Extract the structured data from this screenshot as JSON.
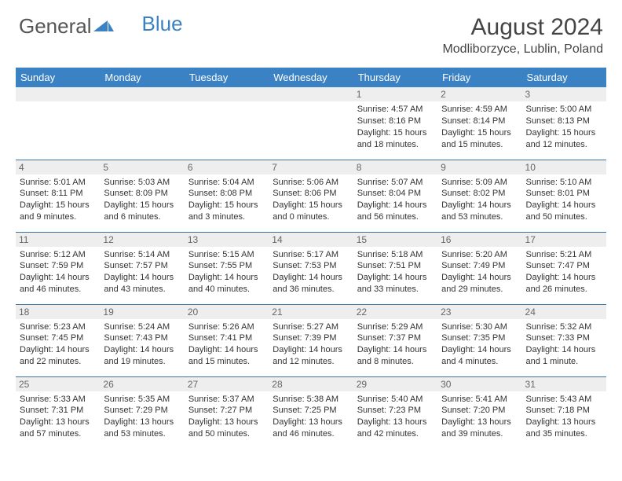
{
  "logo": {
    "part1": "General",
    "part2": "Blue"
  },
  "title": "August 2024",
  "location": "Modliborzyce, Lublin, Poland",
  "colors": {
    "header_bg": "#3b82c4",
    "header_text": "#ffffff",
    "daynum_bg": "#eeeeee",
    "border": "#3b72a8",
    "text": "#333333"
  },
  "weekdays": [
    "Sunday",
    "Monday",
    "Tuesday",
    "Wednesday",
    "Thursday",
    "Friday",
    "Saturday"
  ],
  "weeks": [
    [
      null,
      null,
      null,
      null,
      {
        "n": "1",
        "sr": "4:57 AM",
        "ss": "8:16 PM",
        "dl": "15 hours and 18 minutes."
      },
      {
        "n": "2",
        "sr": "4:59 AM",
        "ss": "8:14 PM",
        "dl": "15 hours and 15 minutes."
      },
      {
        "n": "3",
        "sr": "5:00 AM",
        "ss": "8:13 PM",
        "dl": "15 hours and 12 minutes."
      }
    ],
    [
      {
        "n": "4",
        "sr": "5:01 AM",
        "ss": "8:11 PM",
        "dl": "15 hours and 9 minutes."
      },
      {
        "n": "5",
        "sr": "5:03 AM",
        "ss": "8:09 PM",
        "dl": "15 hours and 6 minutes."
      },
      {
        "n": "6",
        "sr": "5:04 AM",
        "ss": "8:08 PM",
        "dl": "15 hours and 3 minutes."
      },
      {
        "n": "7",
        "sr": "5:06 AM",
        "ss": "8:06 PM",
        "dl": "15 hours and 0 minutes."
      },
      {
        "n": "8",
        "sr": "5:07 AM",
        "ss": "8:04 PM",
        "dl": "14 hours and 56 minutes."
      },
      {
        "n": "9",
        "sr": "5:09 AM",
        "ss": "8:02 PM",
        "dl": "14 hours and 53 minutes."
      },
      {
        "n": "10",
        "sr": "5:10 AM",
        "ss": "8:01 PM",
        "dl": "14 hours and 50 minutes."
      }
    ],
    [
      {
        "n": "11",
        "sr": "5:12 AM",
        "ss": "7:59 PM",
        "dl": "14 hours and 46 minutes."
      },
      {
        "n": "12",
        "sr": "5:14 AM",
        "ss": "7:57 PM",
        "dl": "14 hours and 43 minutes."
      },
      {
        "n": "13",
        "sr": "5:15 AM",
        "ss": "7:55 PM",
        "dl": "14 hours and 40 minutes."
      },
      {
        "n": "14",
        "sr": "5:17 AM",
        "ss": "7:53 PM",
        "dl": "14 hours and 36 minutes."
      },
      {
        "n": "15",
        "sr": "5:18 AM",
        "ss": "7:51 PM",
        "dl": "14 hours and 33 minutes."
      },
      {
        "n": "16",
        "sr": "5:20 AM",
        "ss": "7:49 PM",
        "dl": "14 hours and 29 minutes."
      },
      {
        "n": "17",
        "sr": "5:21 AM",
        "ss": "7:47 PM",
        "dl": "14 hours and 26 minutes."
      }
    ],
    [
      {
        "n": "18",
        "sr": "5:23 AM",
        "ss": "7:45 PM",
        "dl": "14 hours and 22 minutes."
      },
      {
        "n": "19",
        "sr": "5:24 AM",
        "ss": "7:43 PM",
        "dl": "14 hours and 19 minutes."
      },
      {
        "n": "20",
        "sr": "5:26 AM",
        "ss": "7:41 PM",
        "dl": "14 hours and 15 minutes."
      },
      {
        "n": "21",
        "sr": "5:27 AM",
        "ss": "7:39 PM",
        "dl": "14 hours and 12 minutes."
      },
      {
        "n": "22",
        "sr": "5:29 AM",
        "ss": "7:37 PM",
        "dl": "14 hours and 8 minutes."
      },
      {
        "n": "23",
        "sr": "5:30 AM",
        "ss": "7:35 PM",
        "dl": "14 hours and 4 minutes."
      },
      {
        "n": "24",
        "sr": "5:32 AM",
        "ss": "7:33 PM",
        "dl": "14 hours and 1 minute."
      }
    ],
    [
      {
        "n": "25",
        "sr": "5:33 AM",
        "ss": "7:31 PM",
        "dl": "13 hours and 57 minutes."
      },
      {
        "n": "26",
        "sr": "5:35 AM",
        "ss": "7:29 PM",
        "dl": "13 hours and 53 minutes."
      },
      {
        "n": "27",
        "sr": "5:37 AM",
        "ss": "7:27 PM",
        "dl": "13 hours and 50 minutes."
      },
      {
        "n": "28",
        "sr": "5:38 AM",
        "ss": "7:25 PM",
        "dl": "13 hours and 46 minutes."
      },
      {
        "n": "29",
        "sr": "5:40 AM",
        "ss": "7:23 PM",
        "dl": "13 hours and 42 minutes."
      },
      {
        "n": "30",
        "sr": "5:41 AM",
        "ss": "7:20 PM",
        "dl": "13 hours and 39 minutes."
      },
      {
        "n": "31",
        "sr": "5:43 AM",
        "ss": "7:18 PM",
        "dl": "13 hours and 35 minutes."
      }
    ]
  ],
  "labels": {
    "sunrise": "Sunrise:",
    "sunset": "Sunset:",
    "daylight": "Daylight:"
  }
}
